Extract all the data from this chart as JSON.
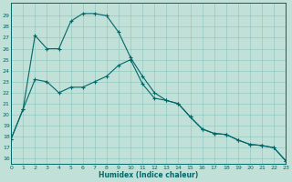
{
  "xlabel": "Humidex (Indice chaleur)",
  "bg_color": "#c0e0d8",
  "line_color": "#006868",
  "grid_color": "#88c4bc",
  "line1_x": [
    0,
    1,
    2,
    3,
    4,
    5,
    6,
    7,
    8,
    9,
    10,
    11,
    12,
    13,
    14,
    15,
    16,
    17,
    18,
    19,
    20,
    21,
    22,
    23
  ],
  "line1_y": [
    17.8,
    20.5,
    27.2,
    26.0,
    26.0,
    28.5,
    29.2,
    29.2,
    29.0,
    27.5,
    25.2,
    23.5,
    22.0,
    21.3,
    21.0,
    19.8,
    18.7,
    18.3,
    18.2,
    17.7,
    17.3,
    17.2,
    17.0,
    15.8
  ],
  "line2_x": [
    0,
    1,
    2,
    3,
    4,
    5,
    6,
    7,
    8,
    9,
    10,
    11,
    12,
    13,
    14,
    15,
    16,
    17,
    18,
    19,
    20,
    21,
    22,
    23
  ],
  "line2_y": [
    17.8,
    20.5,
    23.2,
    23.0,
    22.0,
    22.5,
    22.5,
    23.0,
    23.5,
    24.5,
    25.0,
    22.8,
    21.5,
    21.3,
    21.0,
    19.8,
    18.7,
    18.3,
    18.2,
    17.7,
    17.3,
    17.2,
    17.0,
    15.8
  ],
  "xlim": [
    0,
    23
  ],
  "ylim": [
    15.5,
    30.2
  ],
  "yticks": [
    16,
    17,
    18,
    19,
    20,
    21,
    22,
    23,
    24,
    25,
    26,
    27,
    28,
    29
  ],
  "xticks": [
    0,
    1,
    2,
    3,
    4,
    5,
    6,
    7,
    8,
    9,
    10,
    11,
    12,
    13,
    14,
    15,
    16,
    17,
    18,
    19,
    20,
    21,
    22,
    23
  ]
}
